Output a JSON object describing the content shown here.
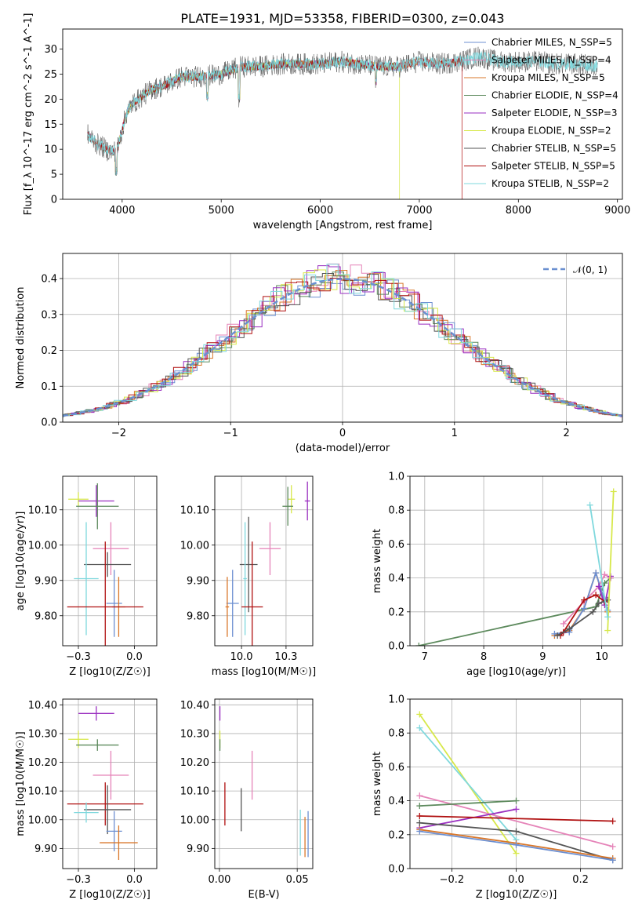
{
  "figure": {
    "title": "PLATE=1931, MJD=53358, FIBERID=0300, z=0.043"
  },
  "colors": {
    "Chabrier MILES": "#6c8fd1",
    "Salpeter MILES": "#e583b8",
    "Kroupa MILES": "#d9772a",
    "Chabrier ELODIE": "#5d8a5d",
    "Salpeter ELODIE": "#9a2fc0",
    "Kroupa ELODIE": "#d7e84a",
    "Chabrier STELIB": "#555555",
    "Salpeter STELIB": "#b01010",
    "Kroupa STELIB": "#7fd8dd"
  },
  "chart_data": [
    {
      "id": "spectrum",
      "type": "line",
      "title": "PLATE=1931, MJD=53358, FIBERID=0300, z=0.043",
      "xlabel": "wavelength [Angstrom, rest frame]",
      "ylabel": "Flux [f_λ 10^-17 erg cm^-2 s^-1 A^-1]",
      "xlim": [
        3400,
        9050
      ],
      "ylim": [
        0,
        34
      ],
      "xticks": [
        4000,
        5000,
        6000,
        7000,
        8000,
        9000
      ],
      "yticks": [
        0,
        5,
        10,
        15,
        20,
        25,
        30
      ],
      "legend": "upper right",
      "continuum": {
        "x": [
          3650,
          3700,
          3750,
          3800,
          3850,
          3900,
          3950,
          4000,
          4050,
          4100,
          4200,
          4300,
          4400,
          4500,
          4600,
          4800,
          5000,
          5200,
          5400,
          5600,
          5800,
          6000,
          6200,
          6400,
          6600,
          6800,
          7000,
          7200,
          7400,
          7600,
          7800,
          8000,
          8200,
          8400,
          8600,
          8800
        ],
        "y": [
          13,
          12,
          11,
          10.5,
          9.8,
          9.5,
          9.8,
          14,
          17.5,
          19,
          20.5,
          22,
          22.5,
          23.5,
          24.5,
          24.5,
          25,
          26.5,
          26.5,
          27,
          27,
          27,
          27.5,
          27,
          26.5,
          26.5,
          27.5,
          27,
          27.5,
          28.5,
          27.5,
          27.5,
          27.5,
          27,
          27,
          26.5
        ]
      },
      "dropouts": [
        {
          "series": "Kroupa ELODIE",
          "x": 6800
        },
        {
          "series": "Salpeter STELIB",
          "x": 7430
        }
      ],
      "series": [
        {
          "name": "Chabrier MILES, N_SSP=5",
          "key": "Chabrier MILES",
          "x_range": [
            3650,
            7420
          ]
        },
        {
          "name": "Salpeter MILES, N_SSP=4",
          "key": "Salpeter MILES",
          "x_range": [
            3650,
            7420
          ]
        },
        {
          "name": "Kroupa MILES, N_SSP=5",
          "key": "Kroupa MILES",
          "x_range": [
            3650,
            7420
          ]
        },
        {
          "name": "Chabrier ELODIE, N_SSP=4",
          "key": "Chabrier ELODIE",
          "x_range": [
            3900,
            6790
          ]
        },
        {
          "name": "Salpeter ELODIE, N_SSP=3",
          "key": "Salpeter ELODIE",
          "x_range": [
            3900,
            6790
          ]
        },
        {
          "name": "Kroupa ELODIE, N_SSP=2",
          "key": "Kroupa ELODIE",
          "x_range": [
            3900,
            6800
          ]
        },
        {
          "name": "Chabrier STELIB, N_SSP=5",
          "key": "Chabrier STELIB",
          "x_range": [
            3650,
            8800
          ]
        },
        {
          "name": "Salpeter STELIB, N_SSP=5",
          "key": "Salpeter STELIB",
          "x_range": [
            3650,
            7430
          ]
        },
        {
          "name": "Kroupa STELIB, N_SSP=2",
          "key": "Kroupa STELIB",
          "x_range": [
            3650,
            8800
          ]
        }
      ]
    },
    {
      "id": "residuals",
      "type": "line",
      "xlabel": "(data-model)/error",
      "ylabel": "Normed distribution",
      "xlim": [
        -2.5,
        2.5
      ],
      "ylim": [
        0,
        0.47
      ],
      "xticks": [
        -2,
        -1,
        0,
        1,
        2
      ],
      "yticks": [
        0.0,
        0.1,
        0.2,
        0.3,
        0.4
      ],
      "grid": true,
      "legend": "upper right",
      "reference": {
        "name": "𝒩(0, 1)",
        "mean": 0,
        "sigma": 1,
        "color": "#6a8fd0"
      },
      "histogram_bin_width": 0.1
    },
    {
      "id": "age-vs-Z",
      "type": "scatter",
      "xlabel": "Z [log10(Z/Z☉)]",
      "ylabel": "age [log10(age/yr)]",
      "xlim": [
        -0.32,
        0.1
      ],
      "ylim": [
        9.715,
        10.195
      ],
      "xticks": [
        -0.25,
        0.0
      ],
      "yticks": [
        9.8,
        9.9,
        10.0,
        10.1
      ],
      "grid": true,
      "points": [
        {
          "key": "Kroupa ELODIE",
          "x": -0.25,
          "xerr": 0.045,
          "y": 10.13,
          "yerr": 0.02
        },
        {
          "key": "Salpeter ELODIE",
          "x": -0.17,
          "xerr": 0.08,
          "y": 10.125,
          "yerr": 0.045
        },
        {
          "key": "Chabrier ELODIE",
          "x": -0.165,
          "xerr": 0.095,
          "y": 10.11,
          "yerr": 0.065
        },
        {
          "key": "Salpeter MILES",
          "x": -0.105,
          "xerr": 0.08,
          "y": 9.99,
          "yerr": 0.075
        },
        {
          "key": "Chabrier STELIB",
          "x": -0.12,
          "xerr": 0.105,
          "y": 9.945,
          "yerr": 0.035
        },
        {
          "key": "Kroupa STELIB",
          "x": -0.215,
          "xerr": 0.055,
          "y": 9.905,
          "yerr": 0.16
        },
        {
          "key": "Chabrier MILES",
          "x": -0.09,
          "xerr": 0.035,
          "y": 9.835,
          "yerr": 0.095
        },
        {
          "key": "Kroupa MILES",
          "x": -0.07,
          "xerr": 0.03,
          "y": 9.825,
          "yerr": 0.085
        },
        {
          "key": "Salpeter STELIB",
          "x": -0.13,
          "xerr": 0.17,
          "y": 9.825,
          "yerr": 0.185
        }
      ]
    },
    {
      "id": "age-vs-mass",
      "type": "scatter",
      "xlabel": "mass [log10(M/M☉)]",
      "ylabel": "",
      "xlim": [
        9.85,
        10.4
      ],
      "ylim": [
        9.715,
        10.195
      ],
      "xticks": [
        10.0,
        10.25
      ],
      "yticks": [
        9.8,
        9.9,
        10.0,
        10.1
      ],
      "grid": true,
      "points": [
        {
          "key": "Kroupa ELODIE",
          "x": 10.28,
          "xerr": 0.02,
          "y": 10.13,
          "yerr": 0.04
        },
        {
          "key": "Salpeter ELODIE",
          "x": 10.37,
          "xerr": 0.015,
          "y": 10.125,
          "yerr": 0.055
        },
        {
          "key": "Chabrier ELODIE",
          "x": 10.26,
          "xerr": 0.03,
          "y": 10.11,
          "yerr": 0.055
        },
        {
          "key": "Salpeter MILES",
          "x": 10.16,
          "xerr": 0.06,
          "y": 9.99,
          "yerr": 0.075
        },
        {
          "key": "Chabrier STELIB",
          "x": 10.04,
          "xerr": 0.05,
          "y": 9.945,
          "yerr": 0.135
        },
        {
          "key": "Kroupa STELIB",
          "x": 10.02,
          "xerr": 0.01,
          "y": 9.905,
          "yerr": 0.16
        },
        {
          "key": "Chabrier MILES",
          "x": 9.95,
          "xerr": 0.035,
          "y": 9.835,
          "yerr": 0.095
        },
        {
          "key": "Kroupa MILES",
          "x": 9.92,
          "xerr": 0.01,
          "y": 9.825,
          "yerr": 0.085
        },
        {
          "key": "Salpeter STELIB",
          "x": 10.06,
          "xerr": 0.06,
          "y": 9.825,
          "yerr": 0.185
        }
      ]
    },
    {
      "id": "massweight-vs-age",
      "type": "line",
      "xlabel": "age [log10(age/yr)]",
      "ylabel": "mass weight",
      "xlim": [
        6.75,
        10.35
      ],
      "ylim": [
        0,
        1.0
      ],
      "xticks": [
        7,
        8,
        9,
        10
      ],
      "yticks": [
        0.0,
        0.2,
        0.4,
        0.6,
        0.8,
        1.0
      ],
      "grid": true,
      "series": [
        {
          "key": "Chabrier ELODIE",
          "x": [
            6.9,
            9.9,
            10.05,
            10.15
          ],
          "y": [
            0.0,
            0.23,
            0.37,
            0.4
          ]
        },
        {
          "key": "Salpeter MILES",
          "x": [
            9.35,
            9.7,
            9.95,
            10.05,
            10.15
          ],
          "y": [
            0.13,
            0.26,
            0.35,
            0.42,
            0.4
          ]
        },
        {
          "key": "Kroupa MILES",
          "x": [
            9.2,
            9.45,
            9.7,
            9.9,
            10.1
          ],
          "y": [
            0.06,
            0.09,
            0.22,
            0.43,
            0.2
          ]
        },
        {
          "key": "Chabrier MILES",
          "x": [
            9.2,
            9.45,
            9.7,
            9.9,
            10.1
          ],
          "y": [
            0.07,
            0.08,
            0.22,
            0.43,
            0.21
          ]
        },
        {
          "key": "Salpeter ELODIE",
          "x": [
            9.95,
            10.05,
            10.15
          ],
          "y": [
            0.35,
            0.24,
            0.41
          ]
        },
        {
          "key": "Salpeter STELIB",
          "x": [
            9.3,
            9.35,
            9.7,
            9.9,
            10.05
          ],
          "y": [
            0.06,
            0.08,
            0.27,
            0.3,
            0.26
          ]
        },
        {
          "key": "Chabrier STELIB",
          "x": [
            9.25,
            9.45,
            9.85,
            9.95,
            10.1
          ],
          "y": [
            0.06,
            0.1,
            0.2,
            0.25,
            0.27
          ]
        },
        {
          "key": "Kroupa ELODIE",
          "x": [
            10.1,
            10.2
          ],
          "y": [
            0.09,
            0.91
          ]
        },
        {
          "key": "Kroupa STELIB",
          "x": [
            9.8,
            10.1
          ],
          "y": [
            0.83,
            0.17
          ]
        }
      ]
    },
    {
      "id": "mass-vs-Z",
      "type": "scatter",
      "xlabel": "Z [log10(Z/Z☉)]",
      "ylabel": "mass [log10(M/M☉)]",
      "xlim": [
        -0.32,
        0.1
      ],
      "ylim": [
        9.83,
        10.42
      ],
      "xticks": [
        -0.25,
        0.0
      ],
      "yticks": [
        9.9,
        10.0,
        10.1,
        10.2,
        10.3,
        10.4
      ],
      "grid": true,
      "points": [
        {
          "key": "Salpeter ELODIE",
          "x": -0.17,
          "xerr": 0.08,
          "y": 10.37,
          "yerr": 0.025
        },
        {
          "key": "Kroupa ELODIE",
          "x": -0.25,
          "xerr": 0.045,
          "y": 10.28,
          "yerr": 0.03
        },
        {
          "key": "Chabrier ELODIE",
          "x": -0.165,
          "xerr": 0.095,
          "y": 10.26,
          "yerr": 0.02
        },
        {
          "key": "Salpeter MILES",
          "x": -0.105,
          "xerr": 0.08,
          "y": 10.155,
          "yerr": 0.085
        },
        {
          "key": "Salpeter STELIB",
          "x": -0.13,
          "xerr": 0.17,
          "y": 10.055,
          "yerr": 0.075
        },
        {
          "key": "Chabrier STELIB",
          "x": -0.12,
          "xerr": 0.105,
          "y": 10.035,
          "yerr": 0.085
        },
        {
          "key": "Kroupa STELIB",
          "x": -0.215,
          "xerr": 0.055,
          "y": 10.025,
          "yerr": 0.035
        },
        {
          "key": "Chabrier MILES",
          "x": -0.09,
          "xerr": 0.035,
          "y": 9.96,
          "yerr": 0.07
        },
        {
          "key": "Kroupa MILES",
          "x": -0.07,
          "xerr": 0.085,
          "y": 9.92,
          "yerr": 0.06
        }
      ]
    },
    {
      "id": "mass-vs-EBV",
      "type": "scatter",
      "xlabel": "E(B-V)",
      "ylabel": "",
      "xlim": [
        -0.003,
        0.06
      ],
      "ylim": [
        9.83,
        10.42
      ],
      "xticks": [
        0.0,
        0.05
      ],
      "yticks": [
        9.9,
        10.0,
        10.1,
        10.2,
        10.3,
        10.4
      ],
      "grid": true,
      "points": [
        {
          "key": "Salpeter ELODIE",
          "x": 0.0003,
          "xerr": 0.0,
          "y": 10.37,
          "yerr": 0.025
        },
        {
          "key": "Kroupa ELODIE",
          "x": 0.0003,
          "xerr": 0.0,
          "y": 10.28,
          "yerr": 0.03
        },
        {
          "key": "Chabrier ELODIE",
          "x": 0.0003,
          "xerr": 0.0,
          "y": 10.26,
          "yerr": 0.02
        },
        {
          "key": "Salpeter MILES",
          "x": 0.021,
          "xerr": 0.0,
          "y": 10.155,
          "yerr": 0.085
        },
        {
          "key": "Salpeter STELIB",
          "x": 0.0035,
          "xerr": 0.0,
          "y": 10.055,
          "yerr": 0.075
        },
        {
          "key": "Chabrier STELIB",
          "x": 0.014,
          "xerr": 0.0,
          "y": 10.035,
          "yerr": 0.075
        },
        {
          "key": "Kroupa STELIB",
          "x": 0.052,
          "xerr": 0.0,
          "y": 9.955,
          "yerr": 0.08
        },
        {
          "key": "Kroupa MILES",
          "x": 0.055,
          "xerr": 0.0,
          "y": 9.94,
          "yerr": 0.07
        },
        {
          "key": "Chabrier MILES",
          "x": 0.057,
          "xerr": 0.0,
          "y": 9.95,
          "yerr": 0.08
        }
      ]
    },
    {
      "id": "massweight-vs-Z",
      "type": "line",
      "xlabel": "Z [log10(Z/Z☉)]",
      "ylabel": "mass weight",
      "xlim": [
        -0.33,
        0.33
      ],
      "ylim": [
        0,
        1.0
      ],
      "xticks": [
        -0.2,
        0.0,
        0.2
      ],
      "yticks": [
        0.0,
        0.2,
        0.4,
        0.6,
        0.8,
        1.0
      ],
      "grid": true,
      "series": [
        {
          "key": "Kroupa ELODIE",
          "x": [
            -0.3,
            0.0
          ],
          "y": [
            0.91,
            0.09
          ]
        },
        {
          "key": "Kroupa STELIB",
          "x": [
            -0.3,
            0.0
          ],
          "y": [
            0.83,
            0.17
          ]
        },
        {
          "key": "Salpeter MILES",
          "x": [
            -0.3,
            0.3
          ],
          "y": [
            0.43,
            0.13
          ]
        },
        {
          "key": "Chabrier ELODIE",
          "x": [
            -0.3,
            0.0
          ],
          "y": [
            0.37,
            0.4
          ]
        },
        {
          "key": "Salpeter ELODIE",
          "x": [
            -0.3,
            0.0
          ],
          "y": [
            0.24,
            0.35
          ]
        },
        {
          "key": "Salpeter STELIB",
          "x": [
            -0.3,
            0.3
          ],
          "y": [
            0.31,
            0.28
          ]
        },
        {
          "key": "Chabrier STELIB",
          "x": [
            -0.3,
            0.0,
            0.3
          ],
          "y": [
            0.27,
            0.22,
            0.05
          ]
        },
        {
          "key": "Kroupa MILES",
          "x": [
            -0.3,
            0.0,
            0.3
          ],
          "y": [
            0.23,
            0.15,
            0.06
          ]
        },
        {
          "key": "Chabrier MILES",
          "x": [
            -0.3,
            0.0,
            0.3
          ],
          "y": [
            0.22,
            0.14,
            0.05
          ]
        }
      ]
    }
  ]
}
